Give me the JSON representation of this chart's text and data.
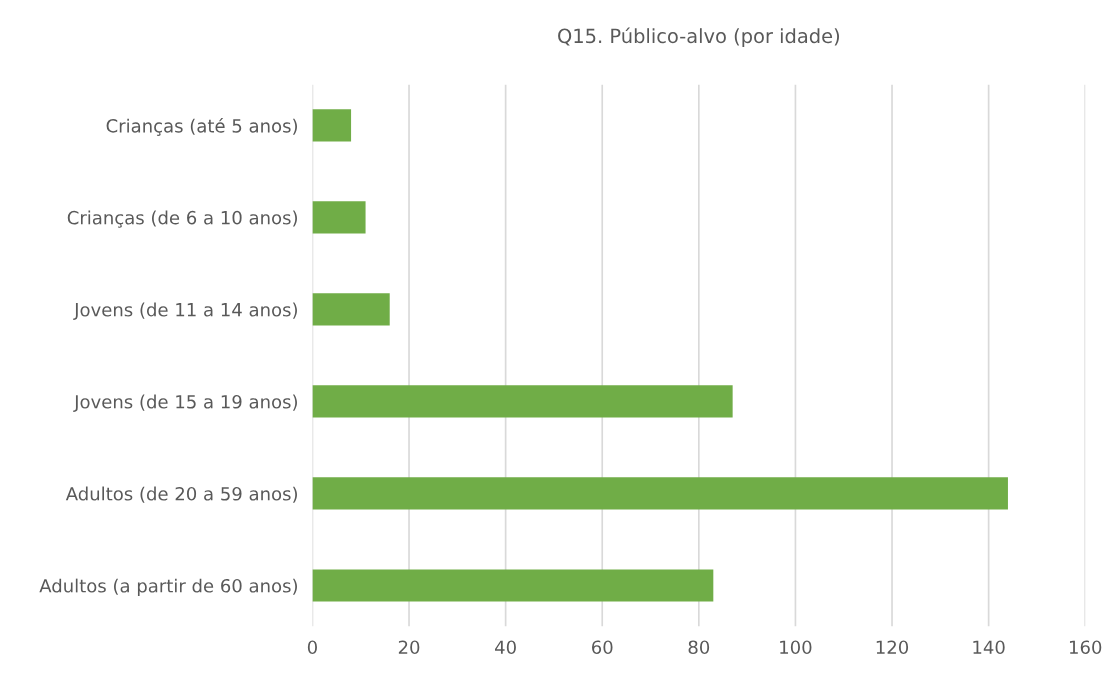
{
  "chart_data": {
    "type": "bar",
    "orientation": "horizontal",
    "title": "Q15. Público-alvo (por idade)",
    "categories": [
      "Crianças (até 5 anos)",
      "Crianças (de 6 a 10 anos)",
      "Jovens (de 11 a 14 anos)",
      "Jovens (de 15 a 19 anos)",
      "Adultos (de 20 a 59 anos)",
      "Adultos (a partir de 60 anos)"
    ],
    "values": [
      8,
      11,
      16,
      87,
      144,
      83
    ],
    "color": "#70ad47",
    "xlim": [
      0,
      160
    ],
    "xticks": [
      0,
      20,
      40,
      60,
      80,
      100,
      120,
      140,
      160
    ],
    "grid": "x"
  }
}
